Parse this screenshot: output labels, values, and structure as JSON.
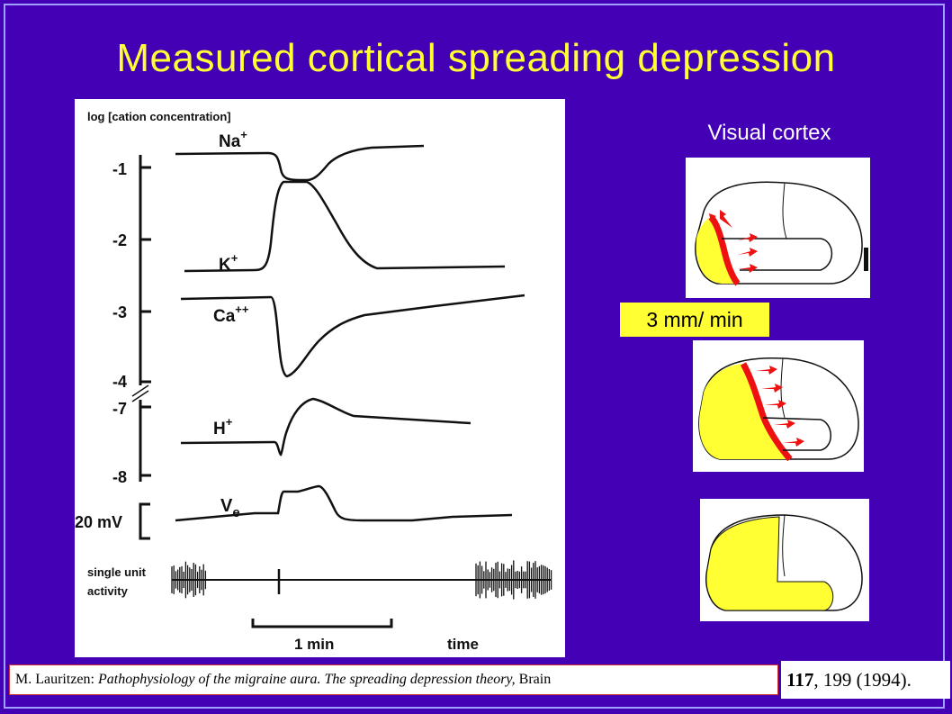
{
  "title": "Measured cortical spreading depression",
  "figure": {
    "ylabel": "log [cation concentration]",
    "ticks": [
      "-1",
      "-2",
      "-3",
      "-4",
      "-7",
      "-8"
    ],
    "voltage_scale": "20 mV",
    "traces": [
      {
        "ion": "Na",
        "charge": "+"
      },
      {
        "ion": "K",
        "charge": "+"
      },
      {
        "ion": "Ca",
        "charge": "++"
      },
      {
        "ion": "H",
        "charge": "+"
      },
      {
        "ion": "V",
        "sub": "e"
      }
    ],
    "unit_label_1": "single unit",
    "unit_label_2": "activity",
    "scalebar_label": "1 min",
    "time_label": "time"
  },
  "visual_cortex_label": "Visual cortex",
  "speed_label": "3 mm/ min",
  "citation": {
    "authors": "M. Lauritzen:",
    "title": "Pathophysiology of the migraine aura. The spreading depression theory,",
    "journal": "Brain",
    "volume": "117",
    "pages_year": ", 199 (1994)."
  },
  "colors": {
    "background": "#4400b4",
    "title": "#ffff33",
    "wave_fill": "#ffff33",
    "wave_front": "#ee1111"
  }
}
